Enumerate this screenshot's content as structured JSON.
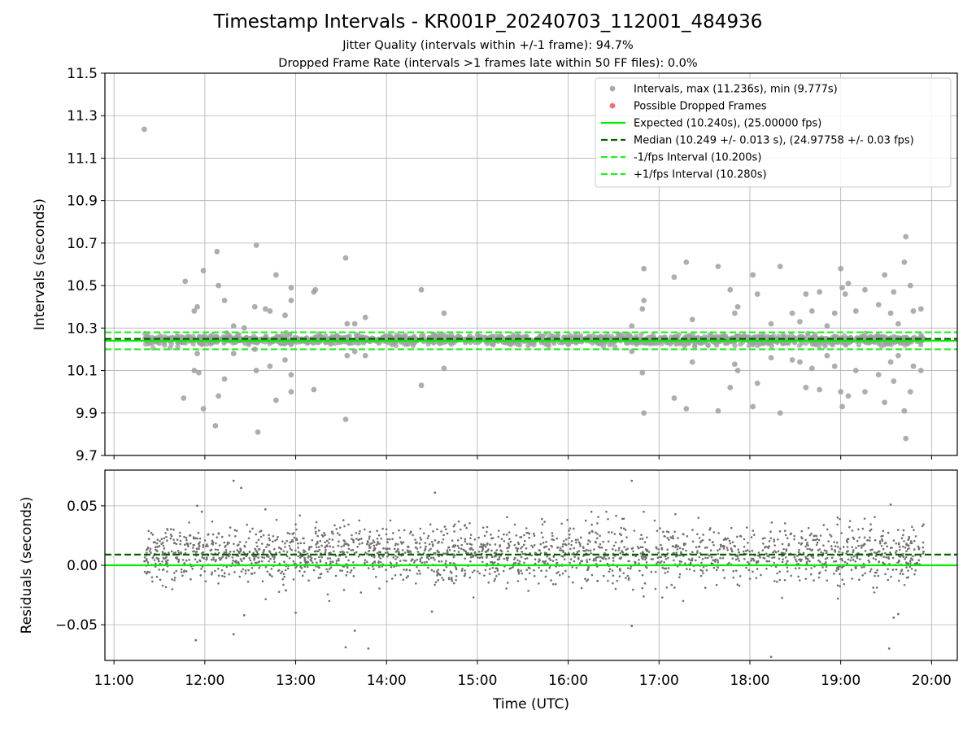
{
  "figure": {
    "title": "Timestamp Intervals - KR001P_20240703_112001_484936",
    "subtitle_1": "Jitter Quality (intervals within +/-1 frame): 94.7%",
    "subtitle_2": "Dropped Frame Rate (intervals >1 frames late within 50 FF files): 0.0%"
  },
  "chart_data": [
    {
      "type": "scatter",
      "panel": "top",
      "xlabel": "",
      "ylabel": "Intervals (seconds)",
      "xlim": [
        "10:54",
        "20:17"
      ],
      "ylim": [
        9.7,
        11.5
      ],
      "yticks": [
        9.7,
        9.9,
        10.1,
        10.3,
        10.5,
        10.7,
        10.9,
        11.1,
        11.3,
        11.5
      ],
      "ytick_labels": [
        "9.7",
        "9.9",
        "10.1",
        "10.3",
        "10.5",
        "10.7",
        "10.9",
        "11.1",
        "11.3",
        "11.5"
      ],
      "xticks": [
        "11:00",
        "12:00",
        "13:00",
        "14:00",
        "15:00",
        "16:00",
        "17:00",
        "18:00",
        "19:00",
        "20:00"
      ],
      "grid": true,
      "legend_position": "top-right",
      "legend": [
        {
          "label": "Intervals, max (11.236s), min (9.777s)",
          "kind": "marker",
          "color": "#a0a0a0"
        },
        {
          "label": "Possible Dropped Frames",
          "kind": "marker",
          "color": "#f06060"
        },
        {
          "label": "Expected (10.240s), (25.00000 fps)",
          "kind": "solid",
          "color": "#00ee00"
        },
        {
          "label": "Median (10.249 +/- 0.013 s), (24.97758 +/- 0.03 fps)",
          "kind": "dashed",
          "color": "#006400"
        },
        {
          "label": "-1/fps Interval (10.200s)",
          "kind": "dashed",
          "color": "#22ee22"
        },
        {
          "label": "+1/fps Interval (10.280s)",
          "kind": "dashed",
          "color": "#22ee22"
        }
      ],
      "reference_lines": {
        "expected": 10.24,
        "median": 10.249,
        "minus_one_fps": 10.2,
        "plus_one_fps": 10.28
      },
      "data_range": {
        "time_start": "11:20",
        "time_end": "19:55",
        "min": 9.777,
        "max": 11.236
      },
      "outliers": [
        {
          "t": "11:20",
          "y": 11.236
        },
        {
          "t": "11:47",
          "y": 10.52
        },
        {
          "t": "11:46",
          "y": 9.97
        },
        {
          "t": "11:53",
          "y": 10.38
        },
        {
          "t": "11:55",
          "y": 10.4
        },
        {
          "t": "11:53",
          "y": 10.1
        },
        {
          "t": "11:56",
          "y": 10.09
        },
        {
          "t": "11:55",
          "y": 10.18
        },
        {
          "t": "11:59",
          "y": 10.57
        },
        {
          "t": "11:59",
          "y": 9.92
        },
        {
          "t": "12:08",
          "y": 10.66
        },
        {
          "t": "12:07",
          "y": 9.84
        },
        {
          "t": "12:09",
          "y": 10.5
        },
        {
          "t": "12:09",
          "y": 9.98
        },
        {
          "t": "12:13",
          "y": 10.43
        },
        {
          "t": "12:13",
          "y": 10.06
        },
        {
          "t": "12:19",
          "y": 10.31
        },
        {
          "t": "12:19",
          "y": 10.18
        },
        {
          "t": "12:26",
          "y": 10.3
        },
        {
          "t": "12:33",
          "y": 10.2
        },
        {
          "t": "12:34",
          "y": 10.69
        },
        {
          "t": "12:33",
          "y": 10.4
        },
        {
          "t": "12:34",
          "y": 10.1
        },
        {
          "t": "12:35",
          "y": 9.81
        },
        {
          "t": "12:43",
          "y": 10.38
        },
        {
          "t": "12:43",
          "y": 10.12
        },
        {
          "t": "12:40",
          "y": 10.39
        },
        {
          "t": "12:47",
          "y": 10.55
        },
        {
          "t": "12:47",
          "y": 9.96
        },
        {
          "t": "12:53",
          "y": 10.36
        },
        {
          "t": "12:53",
          "y": 10.15
        },
        {
          "t": "12:57",
          "y": 10.49
        },
        {
          "t": "12:57",
          "y": 10.43
        },
        {
          "t": "12:57",
          "y": 10.08
        },
        {
          "t": "12:57",
          "y": 10.0
        },
        {
          "t": "13:12",
          "y": 10.47
        },
        {
          "t": "13:13",
          "y": 10.48
        },
        {
          "t": "13:12",
          "y": 10.01
        },
        {
          "t": "13:33",
          "y": 10.63
        },
        {
          "t": "13:33",
          "y": 9.87
        },
        {
          "t": "13:34",
          "y": 10.32
        },
        {
          "t": "13:34",
          "y": 10.17
        },
        {
          "t": "13:39",
          "y": 10.32
        },
        {
          "t": "13:39",
          "y": 10.19
        },
        {
          "t": "13:46",
          "y": 10.35
        },
        {
          "t": "13:46",
          "y": 10.17
        },
        {
          "t": "14:23",
          "y": 10.48
        },
        {
          "t": "14:23",
          "y": 10.03
        },
        {
          "t": "14:38",
          "y": 10.37
        },
        {
          "t": "14:38",
          "y": 10.11
        },
        {
          "t": "16:42",
          "y": 10.31
        },
        {
          "t": "16:42",
          "y": 10.19
        },
        {
          "t": "16:50",
          "y": 10.58
        },
        {
          "t": "16:50",
          "y": 10.43
        },
        {
          "t": "16:49",
          "y": 10.39
        },
        {
          "t": "16:49",
          "y": 10.09
        },
        {
          "t": "16:50",
          "y": 9.9
        },
        {
          "t": "17:10",
          "y": 10.54
        },
        {
          "t": "17:10",
          "y": 9.97
        },
        {
          "t": "17:18",
          "y": 10.61
        },
        {
          "t": "17:18",
          "y": 9.92
        },
        {
          "t": "17:22",
          "y": 10.34
        },
        {
          "t": "17:22",
          "y": 10.14
        },
        {
          "t": "17:39",
          "y": 10.59
        },
        {
          "t": "17:39",
          "y": 9.91
        },
        {
          "t": "17:44",
          "y": 10.26
        },
        {
          "t": "17:47",
          "y": 10.48
        },
        {
          "t": "17:47",
          "y": 10.02
        },
        {
          "t": "17:50",
          "y": 10.37
        },
        {
          "t": "17:50",
          "y": 10.13
        },
        {
          "t": "17:52",
          "y": 10.4
        },
        {
          "t": "17:52",
          "y": 10.1
        },
        {
          "t": "18:02",
          "y": 10.55
        },
        {
          "t": "18:02",
          "y": 9.93
        },
        {
          "t": "18:05",
          "y": 10.46
        },
        {
          "t": "18:05",
          "y": 10.04
        },
        {
          "t": "18:14",
          "y": 10.32
        },
        {
          "t": "18:14",
          "y": 10.16
        },
        {
          "t": "18:20",
          "y": 10.59
        },
        {
          "t": "18:20",
          "y": 9.9
        },
        {
          "t": "18:28",
          "y": 10.37
        },
        {
          "t": "18:28",
          "y": 10.15
        },
        {
          "t": "18:33",
          "y": 10.33
        },
        {
          "t": "18:33",
          "y": 10.14
        },
        {
          "t": "18:37",
          "y": 10.46
        },
        {
          "t": "18:37",
          "y": 10.02
        },
        {
          "t": "18:41",
          "y": 10.38
        },
        {
          "t": "18:41",
          "y": 10.11
        },
        {
          "t": "18:46",
          "y": 10.47
        },
        {
          "t": "18:46",
          "y": 10.01
        },
        {
          "t": "18:51",
          "y": 10.31
        },
        {
          "t": "18:51",
          "y": 10.17
        },
        {
          "t": "18:56",
          "y": 10.37
        },
        {
          "t": "18:56",
          "y": 10.12
        },
        {
          "t": "19:00",
          "y": 10.58
        },
        {
          "t": "19:01",
          "y": 10.49
        },
        {
          "t": "19:03",
          "y": 10.46
        },
        {
          "t": "19:00",
          "y": 10.0
        },
        {
          "t": "19:01",
          "y": 9.93
        },
        {
          "t": "19:05",
          "y": 10.51
        },
        {
          "t": "19:05",
          "y": 9.98
        },
        {
          "t": "19:10",
          "y": 10.38
        },
        {
          "t": "19:10",
          "y": 10.1
        },
        {
          "t": "19:16",
          "y": 10.48
        },
        {
          "t": "19:16",
          "y": 10.0
        },
        {
          "t": "19:25",
          "y": 10.41
        },
        {
          "t": "19:25",
          "y": 10.08
        },
        {
          "t": "19:29",
          "y": 10.55
        },
        {
          "t": "19:29",
          "y": 9.95
        },
        {
          "t": "19:33",
          "y": 10.37
        },
        {
          "t": "19:33",
          "y": 10.14
        },
        {
          "t": "19:35",
          "y": 10.47
        },
        {
          "t": "19:35",
          "y": 10.05
        },
        {
          "t": "19:38",
          "y": 10.32
        },
        {
          "t": "19:38",
          "y": 10.17
        },
        {
          "t": "19:42",
          "y": 10.61
        },
        {
          "t": "19:43",
          "y": 10.73
        },
        {
          "t": "19:42",
          "y": 9.91
        },
        {
          "t": "19:43",
          "y": 9.78
        },
        {
          "t": "19:46",
          "y": 10.5
        },
        {
          "t": "19:46",
          "y": 10.0
        },
        {
          "t": "19:48",
          "y": 10.38
        },
        {
          "t": "19:48",
          "y": 10.12
        },
        {
          "t": "19:53",
          "y": 10.39
        },
        {
          "t": "19:53",
          "y": 10.1
        }
      ]
    },
    {
      "type": "scatter",
      "panel": "bottom",
      "xlabel": "Time (UTC)",
      "ylabel": "Residuals (seconds)",
      "xlim": [
        "10:54",
        "20:17"
      ],
      "ylim": [
        -0.08,
        0.08
      ],
      "yticks": [
        -0.05,
        0.0,
        0.05
      ],
      "ytick_labels": [
        "−0.05",
        "0.00",
        "0.05"
      ],
      "xticks": [
        "11:00",
        "12:00",
        "13:00",
        "14:00",
        "15:00",
        "16:00",
        "17:00",
        "18:00",
        "19:00",
        "20:00"
      ],
      "grid": true,
      "reference_lines": {
        "zero": 0.0,
        "median_offset": 0.009
      },
      "data_range": {
        "time_start": "11:20",
        "time_end": "19:55"
      },
      "outliers": [
        {
          "t": "11:55",
          "y": 0.05
        },
        {
          "t": "11:54",
          "y": -0.063
        },
        {
          "t": "11:58",
          "y": 0.045
        },
        {
          "t": "12:19",
          "y": 0.071
        },
        {
          "t": "12:24",
          "y": 0.065
        },
        {
          "t": "12:19",
          "y": -0.058
        },
        {
          "t": "12:26",
          "y": -0.042
        },
        {
          "t": "12:40",
          "y": 0.047
        },
        {
          "t": "13:00",
          "y": -0.04
        },
        {
          "t": "13:33",
          "y": -0.069
        },
        {
          "t": "13:39",
          "y": -0.055
        },
        {
          "t": "13:48",
          "y": -0.07
        },
        {
          "t": "14:32",
          "y": 0.061
        },
        {
          "t": "14:30",
          "y": -0.039
        },
        {
          "t": "16:42",
          "y": 0.071
        },
        {
          "t": "16:42",
          "y": -0.051
        },
        {
          "t": "18:14",
          "y": -0.077
        },
        {
          "t": "19:33",
          "y": 0.051
        },
        {
          "t": "19:32",
          "y": -0.07
        },
        {
          "t": "19:38",
          "y": -0.041
        },
        {
          "t": "19:35",
          "y": -0.044
        }
      ]
    }
  ]
}
